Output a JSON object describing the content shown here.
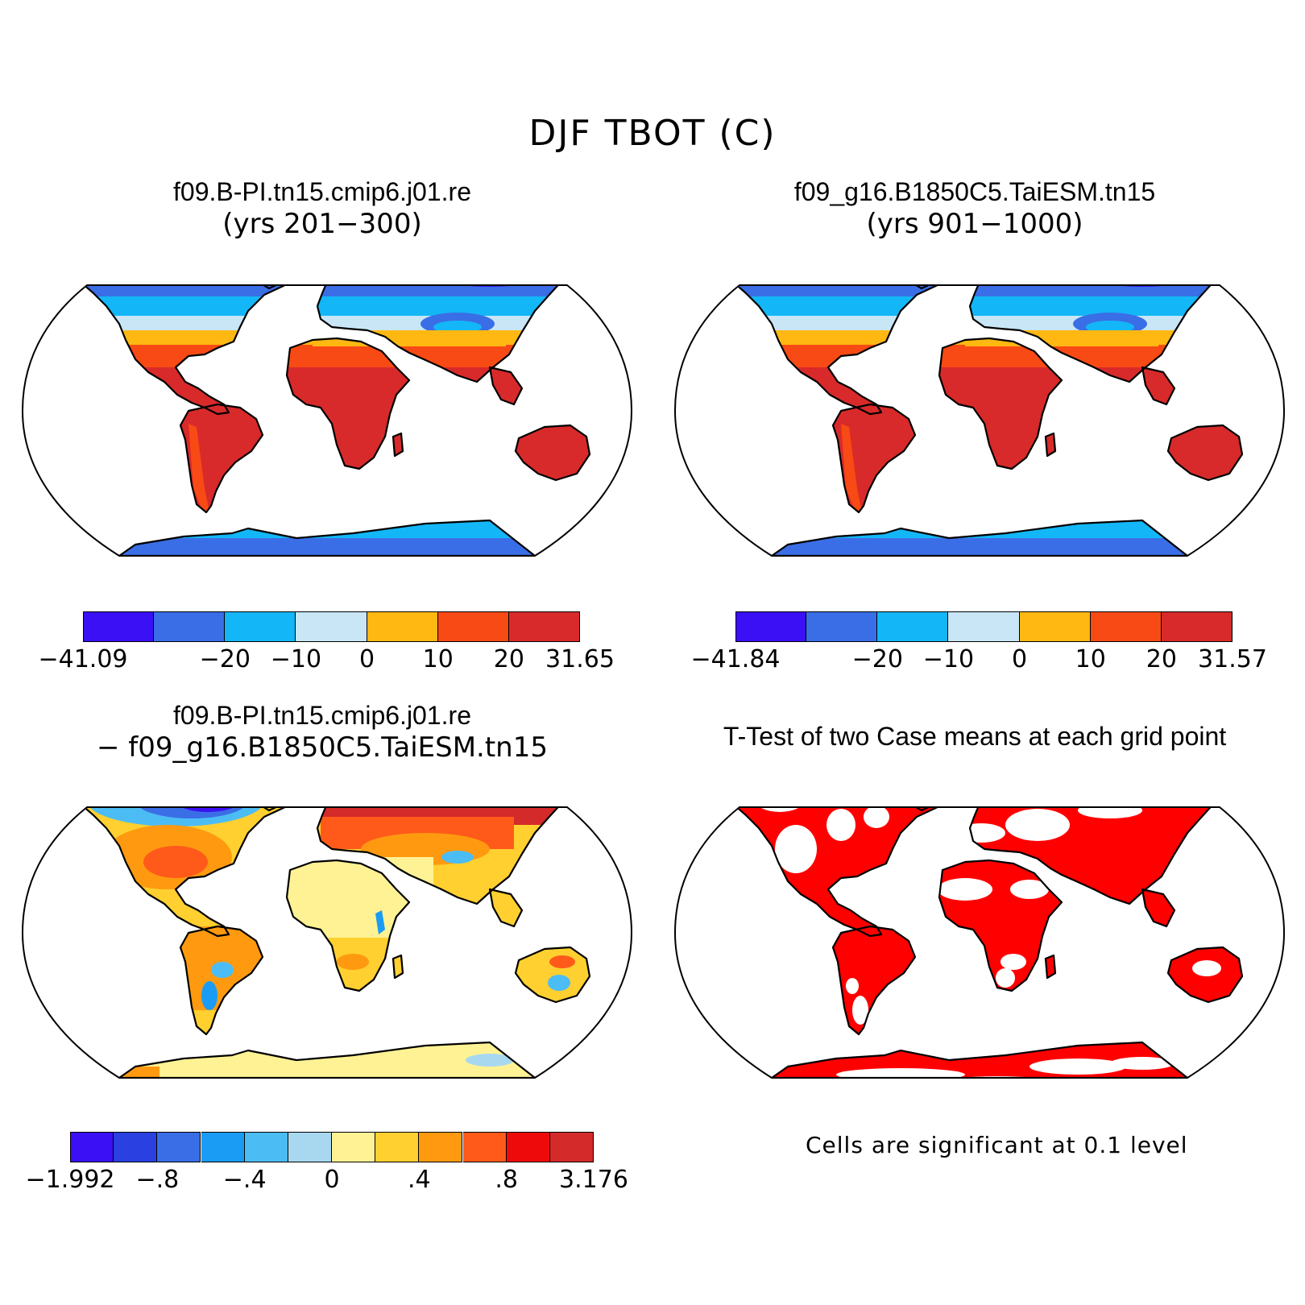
{
  "figure_title": "DJF TBOT (C)",
  "panels": {
    "p1": {
      "title": "f09.B-PI.tn15.cmip6.j01.re",
      "subtitle": "(yrs 201−300)"
    },
    "p2": {
      "title": "f09_g16.B1850C5.TaiESM.tn15",
      "subtitle": "(yrs 901−1000)"
    },
    "p3": {
      "title": "f09.B-PI.tn15.cmip6.j01.re",
      "subtitle": "− f09_g16.B1850C5.TaiESM.tn15"
    },
    "p4": {
      "title": "T-Test of two Case means at each grid point",
      "note": "Cells are significant at 0.1 level"
    }
  },
  "colorbars": {
    "cb1": {
      "colors": [
        "#3b10f5",
        "#3a6ee6",
        "#13b7f7",
        "#c8e6f6",
        "#ffb812",
        "#f84a14",
        "#d82a2a"
      ],
      "labels": [
        "−41.09",
        "−20",
        "−10",
        "0",
        "10",
        "20",
        "31.65"
      ]
    },
    "cb2": {
      "colors": [
        "#3b10f5",
        "#3a6ee6",
        "#13b7f7",
        "#c8e6f6",
        "#ffb812",
        "#f84a14",
        "#d82a2a"
      ],
      "labels": [
        "−41.84",
        "−20",
        "−10",
        "0",
        "10",
        "20",
        "31.57"
      ]
    },
    "cb3": {
      "colors": [
        "#3b10f5",
        "#2a40e0",
        "#3a6ee6",
        "#1a9cf4",
        "#4cbcf4",
        "#a8d8f0",
        "#fff294",
        "#ffd030",
        "#ff9a10",
        "#ff5a1a",
        "#ee0a0a",
        "#d42a2a"
      ],
      "labels": [
        "−1.992",
        "−.8",
        "−.4",
        "0",
        ".4",
        ".8",
        "3.176"
      ]
    }
  },
  "sig_color": "#ff0000"
}
